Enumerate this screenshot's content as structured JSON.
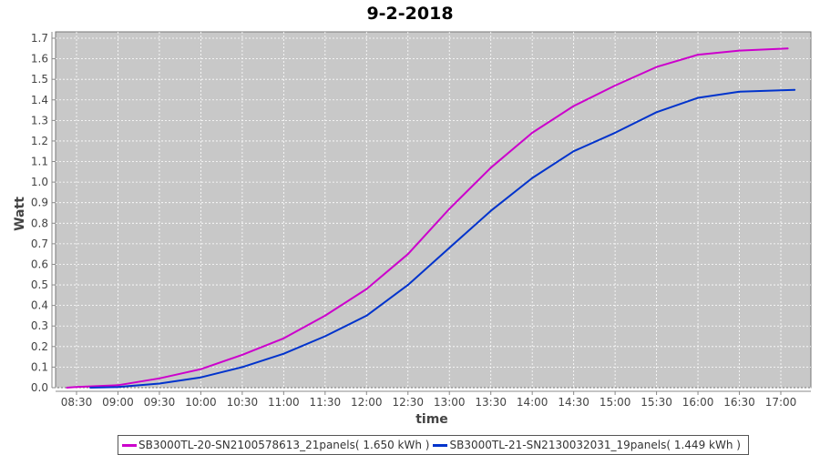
{
  "chart_data": {
    "type": "line",
    "title": "9-2-2018",
    "xlabel": "time",
    "ylabel": "Watt",
    "ylim": [
      0,
      1.7
    ],
    "xlim": [
      "08:17",
      "17:17"
    ],
    "grid": true,
    "legend_position": "bottom",
    "yticks": [
      "0.0",
      "0.1",
      "0.2",
      "0.3",
      "0.4",
      "0.5",
      "0.6",
      "0.7",
      "0.8",
      "0.9",
      "1.0",
      "1.1",
      "1.2",
      "1.3",
      "1.4",
      "1.5",
      "1.6",
      "1.7"
    ],
    "xticks": [
      "08:30",
      "09:00",
      "09:30",
      "10:00",
      "10:30",
      "11:00",
      "11:30",
      "12:00",
      "12:30",
      "13:00",
      "13:30",
      "14:00",
      "14:30",
      "15:00",
      "15:30",
      "16:00",
      "16:30",
      "17:00"
    ],
    "background": "#c8c8c8",
    "series": [
      {
        "name": "SB3000TL-20-SN2100578613_21panels( 1.650 kWh )",
        "color": "#cc00cc",
        "x": [
          "08:23",
          "08:30",
          "09:00",
          "09:30",
          "10:00",
          "10:30",
          "11:00",
          "11:30",
          "12:00",
          "12:30",
          "13:00",
          "13:30",
          "14:00",
          "14:30",
          "15:00",
          "15:30",
          "16:00",
          "16:30",
          "17:05"
        ],
        "y": [
          0.0,
          0.003,
          0.012,
          0.045,
          0.09,
          0.16,
          0.24,
          0.35,
          0.48,
          0.65,
          0.87,
          1.07,
          1.24,
          1.37,
          1.47,
          1.56,
          1.62,
          1.64,
          1.65
        ]
      },
      {
        "name": "SB3000TL-21-SN2130032031_19panels( 1.449 kWh )",
        "color": "#0033cc",
        "x": [
          "08:40",
          "09:00",
          "09:30",
          "10:00",
          "10:30",
          "11:00",
          "11:30",
          "12:00",
          "12:30",
          "13:00",
          "13:30",
          "14:00",
          "14:30",
          "15:00",
          "15:30",
          "16:00",
          "16:30",
          "17:10"
        ],
        "y": [
          0.0,
          0.003,
          0.02,
          0.05,
          0.1,
          0.165,
          0.25,
          0.35,
          0.5,
          0.68,
          0.86,
          1.02,
          1.15,
          1.24,
          1.34,
          1.41,
          1.44,
          1.449
        ]
      }
    ]
  }
}
